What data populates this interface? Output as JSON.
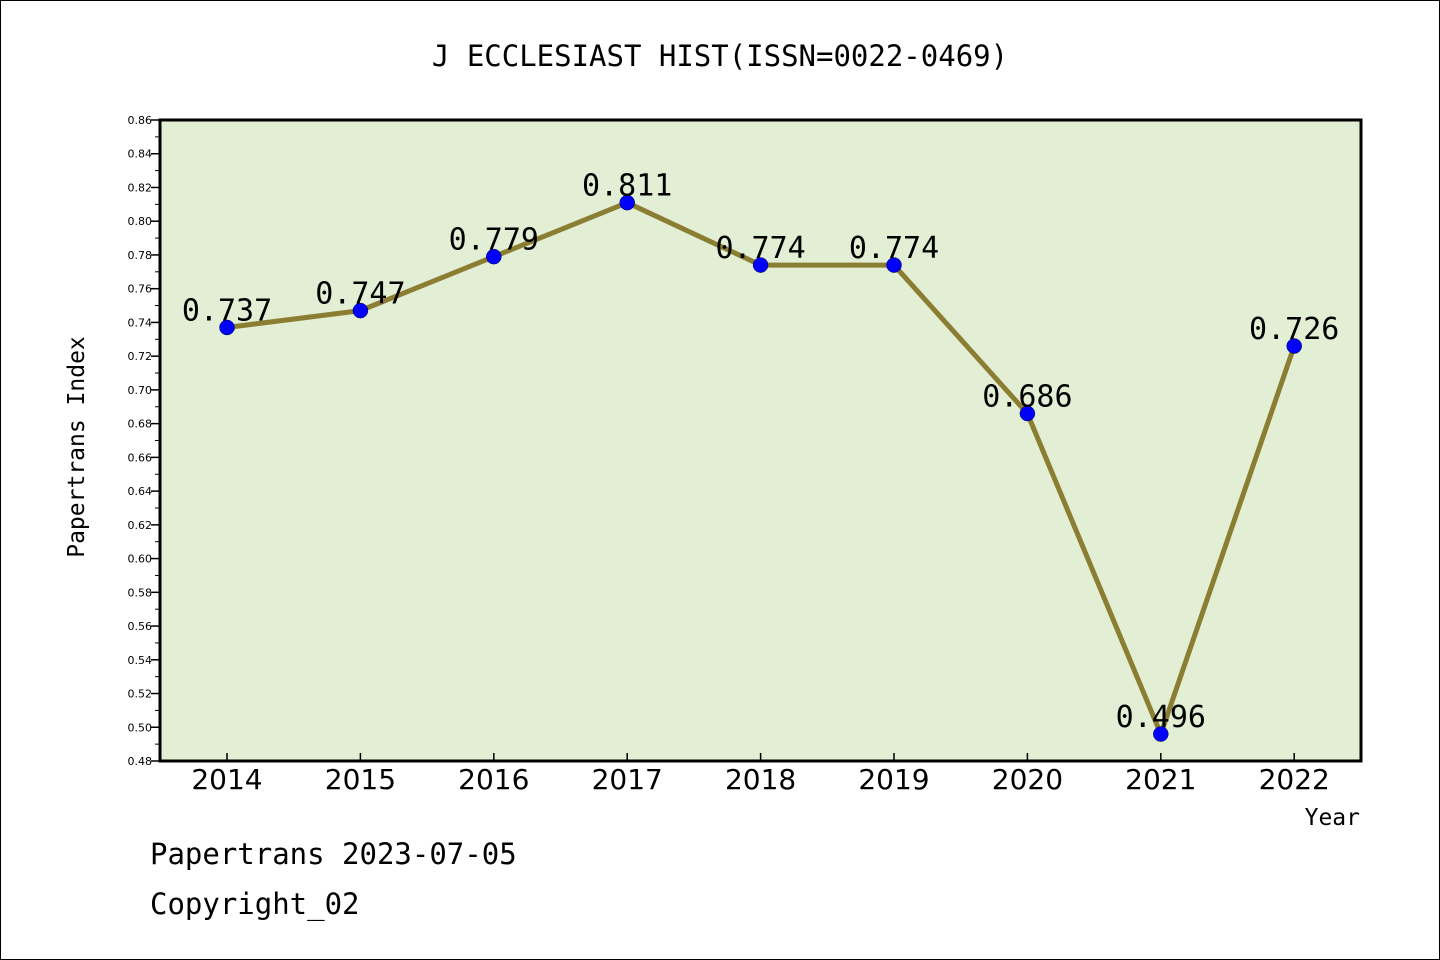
{
  "chart_data": {
    "type": "line",
    "title": "J ECCLESIAST HIST(ISSN=0022-0469)",
    "xlabel": "Year",
    "ylabel": "Papertrans Index",
    "categories": [
      "2014",
      "2015",
      "2016",
      "2017",
      "2018",
      "2019",
      "2020",
      "2021",
      "2022"
    ],
    "series": [
      {
        "values": [
          0.737,
          0.747,
          0.779,
          0.811,
          0.774,
          0.774,
          0.686,
          0.496,
          0.726
        ]
      }
    ],
    "data_labels": [
      "0.737",
      "0.747",
      "0.779",
      "0.811",
      "0.774",
      "0.774",
      "0.686",
      "0.496",
      "0.726"
    ],
    "ylim": [
      0.48,
      0.86
    ],
    "yticks": [
      "0.48",
      "0.50",
      "0.52",
      "0.54",
      "0.56",
      "0.58",
      "0.60",
      "0.62",
      "0.64",
      "0.66",
      "0.68",
      "0.70",
      "0.72",
      "0.74",
      "0.76",
      "0.78",
      "0.80",
      "0.82",
      "0.84",
      "0.86"
    ],
    "grid": false,
    "colors": {
      "plot_background": "#e2efd5",
      "line": "#8b7d32",
      "marker": "#0000ff"
    }
  },
  "footer": {
    "line1": "Papertrans 2023-07-05",
    "line2": "Copyright_02"
  }
}
